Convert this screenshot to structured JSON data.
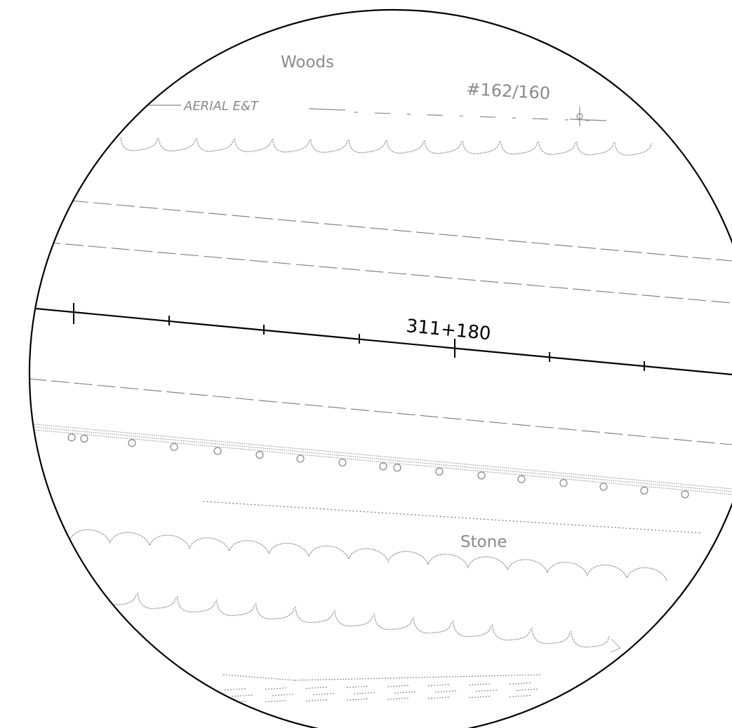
{
  "view": {
    "labels": {
      "woods": "Woods",
      "pole_number": "#162/160",
      "aerial_line": "AERIAL E&T",
      "station": "311+180",
      "stone": "Stone"
    },
    "colors": {
      "baseline": "#000000",
      "linework": "#8a8a8a",
      "background": "#ffffff"
    }
  }
}
